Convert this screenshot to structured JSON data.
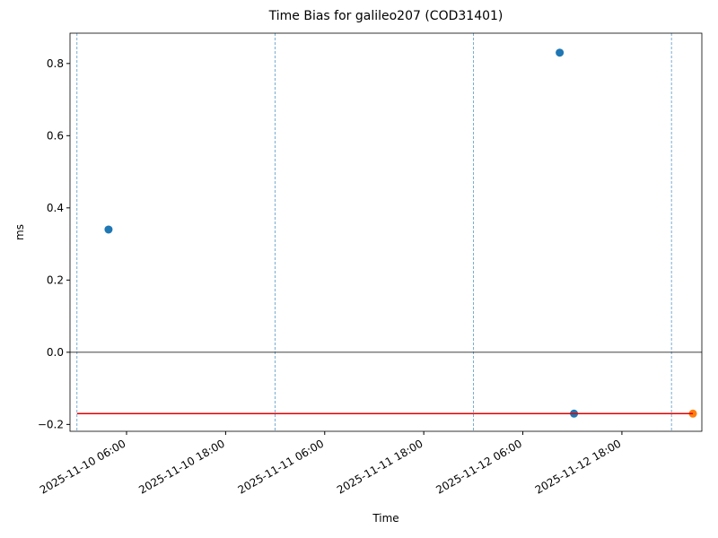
{
  "chart_data": {
    "type": "scatter",
    "title": "Time Bias for galileo207 (COD31401)",
    "xlabel": "Time",
    "ylabel": "ms",
    "xlim": [
      "2025-11-09 23:09",
      "2025-11-13 03:41"
    ],
    "ylim": [
      -0.219,
      0.884
    ],
    "xticks": [
      "2025-11-10 06:00",
      "2025-11-10 18:00",
      "2025-11-11 06:00",
      "2025-11-11 18:00",
      "2025-11-12 06:00",
      "2025-11-12 18:00"
    ],
    "yticks": [
      {
        "value": -0.2,
        "label": "−0.2"
      },
      {
        "value": 0,
        "label": "0.0"
      },
      0.2,
      0.4,
      0.6,
      0.8
    ],
    "series": [
      {
        "color": "#1f77b4",
        "x": [
          "2025-11-10 03:49",
          "2025-11-12 10:28",
          "2025-11-12 12:12"
        ],
        "values": [
          0.34,
          0.83,
          -0.17
        ]
      },
      {
        "color": "#ff7f0e",
        "x": [
          "2025-11-13 02:36"
        ],
        "values": [
          -0.17
        ]
      },
      {
        "type": "line",
        "color": "#e00000",
        "x": [
          "2025-11-10 00:00",
          "2025-11-13 02:36"
        ],
        "values": [
          -0.17,
          -0.17
        ]
      }
    ],
    "hline": {
      "value": 0,
      "color": "#000000"
    },
    "vlines": {
      "color": "#1f77b4",
      "x": [
        "2025-11-10 00:00",
        "2025-11-11 00:00",
        "2025-11-12 00:00",
        "2025-11-13 00:00"
      ]
    }
  }
}
